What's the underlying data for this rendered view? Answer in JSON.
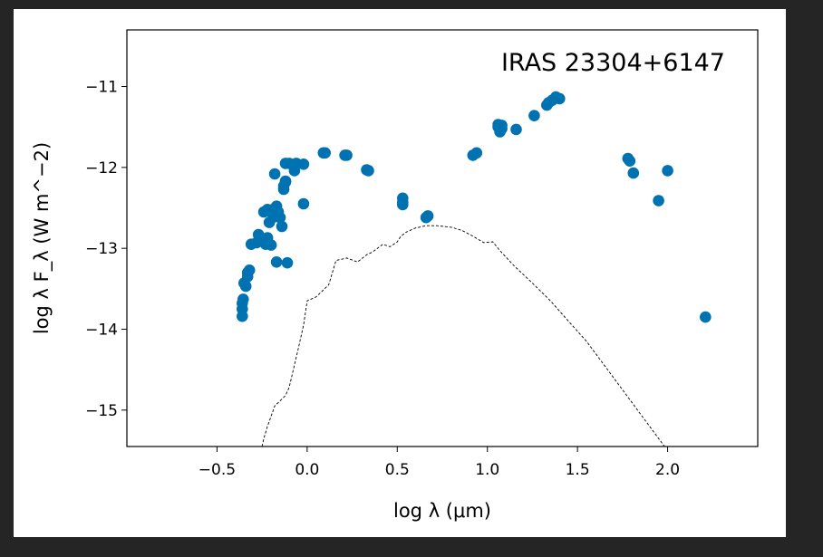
{
  "chart_data": {
    "type": "scatter",
    "title": "IRAS 23304+6147",
    "xlabel": "log λ (μm)",
    "ylabel": "log λ F_λ (W m^−2)",
    "xlim": [
      -1.0,
      2.5
    ],
    "ylim": [
      -15.45,
      -10.3
    ],
    "xticks": [
      -0.5,
      0.0,
      0.5,
      1.0,
      1.5,
      2.0
    ],
    "xtick_labels": [
      "−0.5",
      "0.0",
      "0.5",
      "1.0",
      "1.5",
      "2.0"
    ],
    "yticks": [
      -11,
      -12,
      -13,
      -14,
      -15
    ],
    "ytick_labels": [
      "−11",
      "−12",
      "−13",
      "−14",
      "−15"
    ],
    "grid": false,
    "point_color": "#0072b2",
    "model_color": "#000000",
    "series": [
      {
        "role": "photometry",
        "x": [
          -0.36,
          -0.36,
          -0.36,
          -0.355,
          -0.35,
          -0.34,
          -0.33,
          -0.33,
          -0.32,
          -0.31,
          -0.28,
          -0.27,
          -0.25,
          -0.24,
          -0.23,
          -0.22,
          -0.22,
          -0.21,
          -0.2,
          -0.19,
          -0.19,
          -0.18,
          -0.18,
          -0.17,
          -0.17,
          -0.16,
          -0.15,
          -0.14,
          -0.13,
          -0.13,
          -0.12,
          -0.12,
          -0.12,
          -0.11,
          -0.1,
          -0.07,
          -0.06,
          -0.02,
          -0.02,
          0.09,
          0.1,
          0.21,
          0.22,
          0.33,
          0.34,
          0.53,
          0.53,
          0.53,
          0.66,
          0.67,
          0.92,
          0.94,
          1.06,
          1.06,
          1.07,
          1.07,
          1.08,
          1.08,
          1.16,
          1.26,
          1.33,
          1.34,
          1.36,
          1.38,
          1.4,
          1.78,
          1.79,
          1.81,
          1.95,
          2.0,
          2.21
        ],
        "y": [
          -13.84,
          -13.75,
          -13.68,
          -13.63,
          -13.43,
          -13.47,
          -13.35,
          -13.3,
          -13.27,
          -12.95,
          -12.93,
          -12.83,
          -12.88,
          -12.55,
          -12.95,
          -12.52,
          -12.87,
          -12.68,
          -12.96,
          -12.58,
          -12.52,
          -12.61,
          -12.08,
          -13.17,
          -12.48,
          -12.55,
          -12.62,
          -12.73,
          -12.27,
          -12.23,
          -12.18,
          -12.17,
          -11.95,
          -13.18,
          -11.95,
          -12.04,
          -11.95,
          -12.45,
          -11.96,
          -11.82,
          -11.82,
          -11.85,
          -11.85,
          -12.03,
          -12.04,
          -12.46,
          -12.43,
          -12.38,
          -12.62,
          -12.6,
          -11.85,
          -11.82,
          -11.47,
          -11.5,
          -11.53,
          -11.56,
          -11.52,
          -11.48,
          -11.53,
          -11.36,
          -11.23,
          -11.2,
          -11.17,
          -11.13,
          -11.15,
          -11.89,
          -11.92,
          -12.07,
          -12.41,
          -12.04,
          -13.85
        ]
      },
      {
        "role": "model",
        "x": [
          -0.25,
          -0.24,
          -0.22,
          -0.18,
          -0.12,
          -0.1,
          -0.05,
          -0.02,
          0.0,
          0.05,
          0.12,
          0.16,
          0.22,
          0.28,
          0.33,
          0.36,
          0.42,
          0.46,
          0.5,
          0.52,
          0.55,
          0.6,
          0.66,
          0.72,
          0.8,
          0.86,
          0.92,
          0.98,
          1.03,
          1.07,
          1.15,
          1.25,
          1.35,
          1.45,
          1.55,
          1.65,
          1.75,
          1.85,
          1.95,
          2.0
        ],
        "y": [
          -15.45,
          -15.35,
          -15.2,
          -14.95,
          -14.82,
          -14.72,
          -14.25,
          -13.95,
          -13.65,
          -13.6,
          -13.45,
          -13.15,
          -13.12,
          -13.17,
          -13.08,
          -13.05,
          -12.95,
          -12.98,
          -12.92,
          -12.85,
          -12.8,
          -12.75,
          -12.72,
          -12.72,
          -12.74,
          -12.78,
          -12.85,
          -12.93,
          -12.92,
          -13.03,
          -13.22,
          -13.43,
          -13.65,
          -13.9,
          -14.15,
          -14.45,
          -14.75,
          -15.05,
          -15.35,
          -15.5
        ]
      }
    ]
  }
}
